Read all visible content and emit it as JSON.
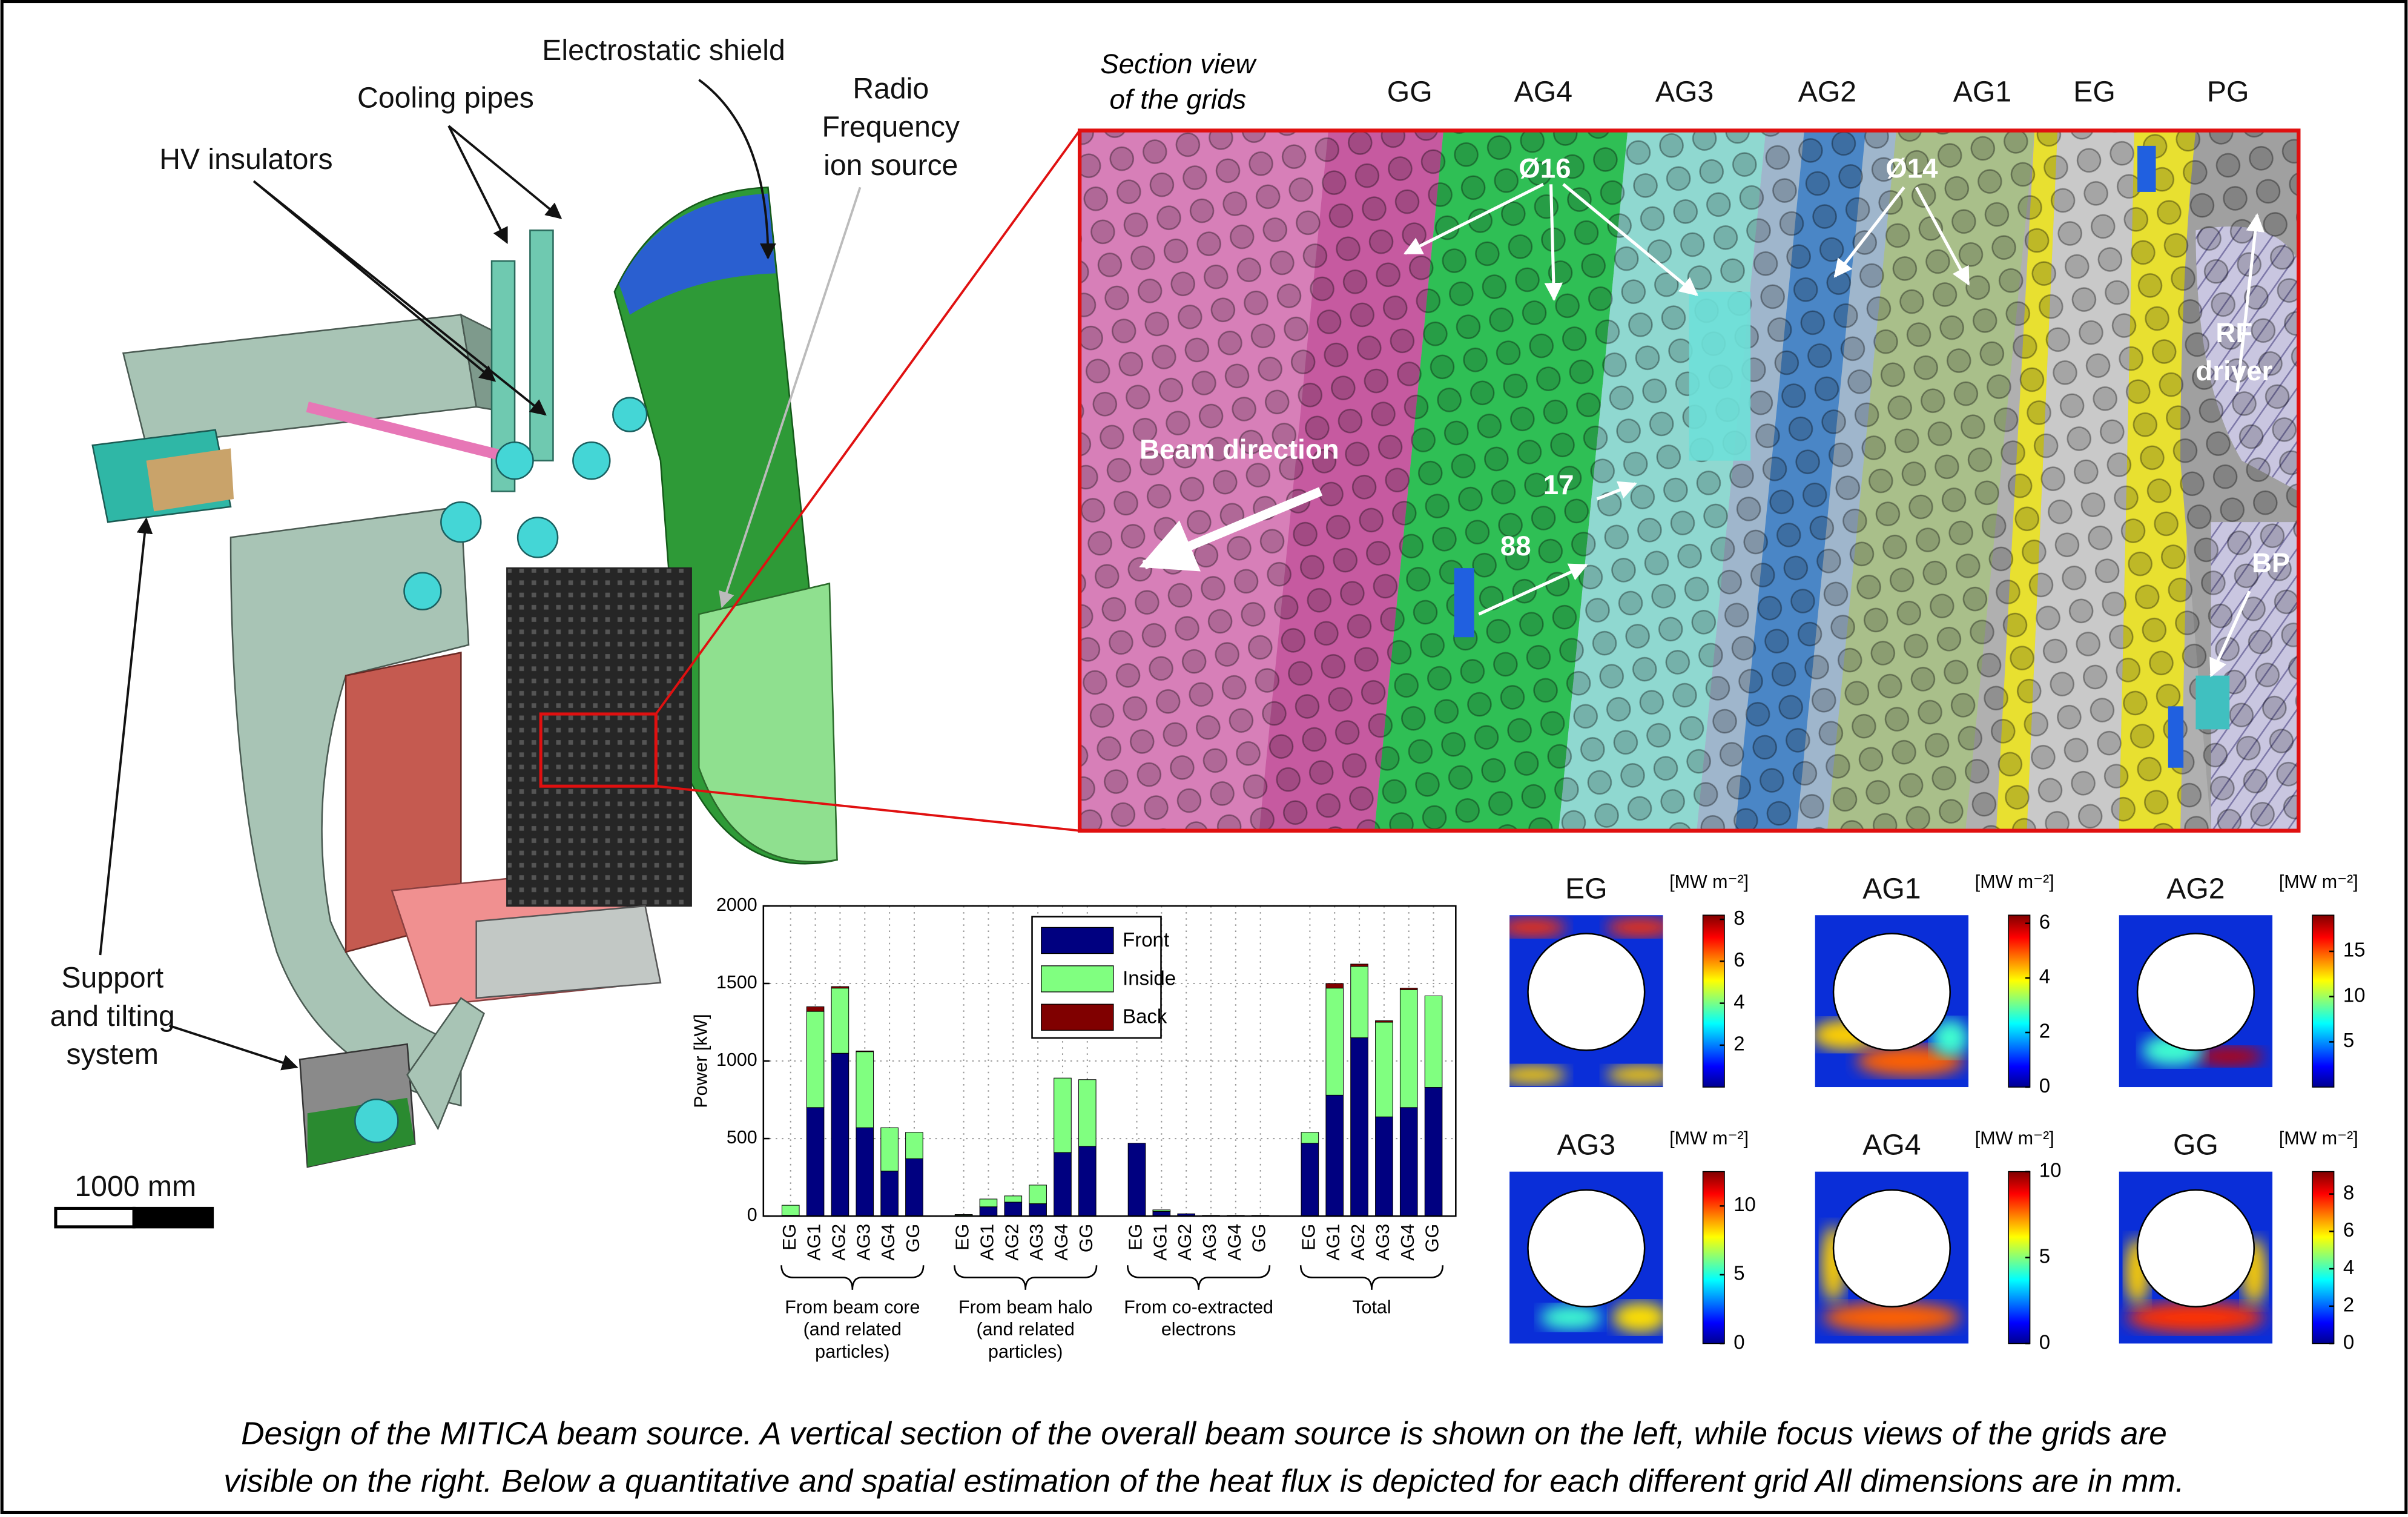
{
  "figure": {
    "assembly_labels": {
      "electrostatic_shield": "Electrostatic shield",
      "cooling_pipes": "Cooling pipes",
      "hv_insulators": "HV insulators",
      "ion_source": [
        "Radio",
        "Frequency",
        "ion source"
      ],
      "support": [
        "Support",
        "and tilting",
        "system"
      ],
      "scale_bar": "1000 mm"
    },
    "section_view": {
      "title": [
        "Section view",
        "of the grids"
      ],
      "grids": [
        "GG",
        "AG4",
        "AG3",
        "AG2",
        "AG1",
        "EG",
        "PG"
      ],
      "callouts": {
        "d16": "Ø16",
        "d14": "Ø14",
        "beam": "Beam direction",
        "gap": "17",
        "pitch": "88",
        "rf": [
          "RF",
          "driver"
        ],
        "bp": "BP"
      }
    },
    "heat_maps": [
      {
        "title": "EG",
        "unit": "[MW m⁻²]",
        "clim": [
          0,
          8.2
        ],
        "ticks": [
          2,
          4,
          6,
          8
        ]
      },
      {
        "title": "AG1",
        "unit": "[MW m⁻²]",
        "clim": [
          0,
          6.3
        ],
        "ticks": [
          0,
          2,
          4,
          6
        ]
      },
      {
        "title": "AG2",
        "unit": "[MW m⁻²]",
        "clim": [
          0,
          19
        ],
        "ticks": [
          5,
          10,
          15
        ]
      },
      {
        "title": "AG3",
        "unit": "[MW m⁻²]",
        "clim": [
          0,
          12.5
        ],
        "ticks": [
          0,
          5,
          10
        ]
      },
      {
        "title": "AG4",
        "unit": "[MW m⁻²]",
        "clim": [
          0,
          10
        ],
        "ticks": [
          0,
          5,
          10
        ]
      },
      {
        "title": "GG",
        "unit": "[MW m⁻²]",
        "clim": [
          0,
          9.2
        ],
        "ticks": [
          0,
          2,
          4,
          6,
          8
        ]
      }
    ],
    "caption": [
      "Design of the MITICA beam source. A vertical section of the overall beam source is shown on the left, while focus views of the grids are",
      "visible on the right. Below a quantitative and spatial estimation of the heat flux is depicted for each different grid All dimensions are in mm."
    ]
  },
  "chart_data": {
    "type": "bar",
    "stacked": true,
    "ylabel": "Power [kW]",
    "categories": [
      "EG",
      "AG1",
      "AG2",
      "AG3",
      "AG4",
      "GG",
      "EG",
      "AG1",
      "AG2",
      "AG3",
      "AG4",
      "GG",
      "EG",
      "AG1",
      "AG2",
      "AG3",
      "AG4",
      "GG",
      "EG",
      "AG1",
      "AG2",
      "AG3",
      "AG4",
      "GG"
    ],
    "groups": [
      [
        "From beam core",
        "(and related",
        "particles)"
      ],
      [
        "From beam halo",
        "(and related",
        "particles)"
      ],
      [
        "From co-extracted",
        "electrons"
      ],
      [
        "Total"
      ]
    ],
    "series": [
      {
        "name": "Front",
        "color": "#000080",
        "values": [
          5,
          700,
          1050,
          570,
          290,
          370,
          5,
          60,
          90,
          80,
          410,
          450,
          470,
          30,
          15,
          5,
          5,
          5,
          470,
          780,
          1150,
          640,
          700,
          830
        ]
      },
      {
        "name": "Inside",
        "color": "#80ff80",
        "values": [
          65,
          620,
          420,
          490,
          280,
          170,
          5,
          50,
          40,
          120,
          480,
          430,
          0,
          10,
          0,
          0,
          0,
          0,
          70,
          690,
          460,
          610,
          760,
          590
        ]
      },
      {
        "name": "Back",
        "color": "#800000",
        "values": [
          0,
          30,
          10,
          5,
          0,
          0,
          0,
          0,
          0,
          0,
          0,
          0,
          0,
          0,
          0,
          0,
          0,
          0,
          0,
          30,
          15,
          10,
          10,
          0
        ]
      }
    ],
    "ylim": [
      0,
      2000
    ],
    "yticks": [
      0,
      500,
      1000,
      1500,
      2000
    ],
    "grid": true,
    "legend": "upper center"
  }
}
